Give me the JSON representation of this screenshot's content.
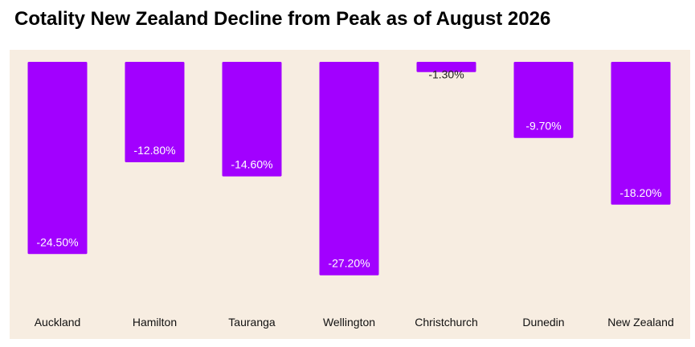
{
  "title": "Cotality New Zealand Decline from Peak as of August 2026",
  "colors": {
    "bar": "#a200ff",
    "background": "#f7ede1",
    "inside_label": "#ffffff",
    "outside_label": "#222222",
    "category_label": "#111111"
  },
  "chart_data": {
    "type": "bar",
    "title": "Cotality New Zealand Decline from Peak as of August 2026",
    "categories": [
      "Auckland",
      "Hamilton",
      "Tauranga",
      "Wellington",
      "Christchurch",
      "Dunedin",
      "New Zealand"
    ],
    "values": [
      -24.5,
      -12.8,
      -14.6,
      -27.2,
      -1.3,
      -9.7,
      -18.2
    ],
    "data_labels": [
      "-24.50%",
      "-12.80%",
      "-14.60%",
      "-27.20%",
      "-1.30%",
      "-9.70%",
      "-18.20%"
    ],
    "ylim": [
      -30,
      0
    ],
    "grid": false,
    "legend": "none",
    "xlabel": "",
    "ylabel": ""
  }
}
